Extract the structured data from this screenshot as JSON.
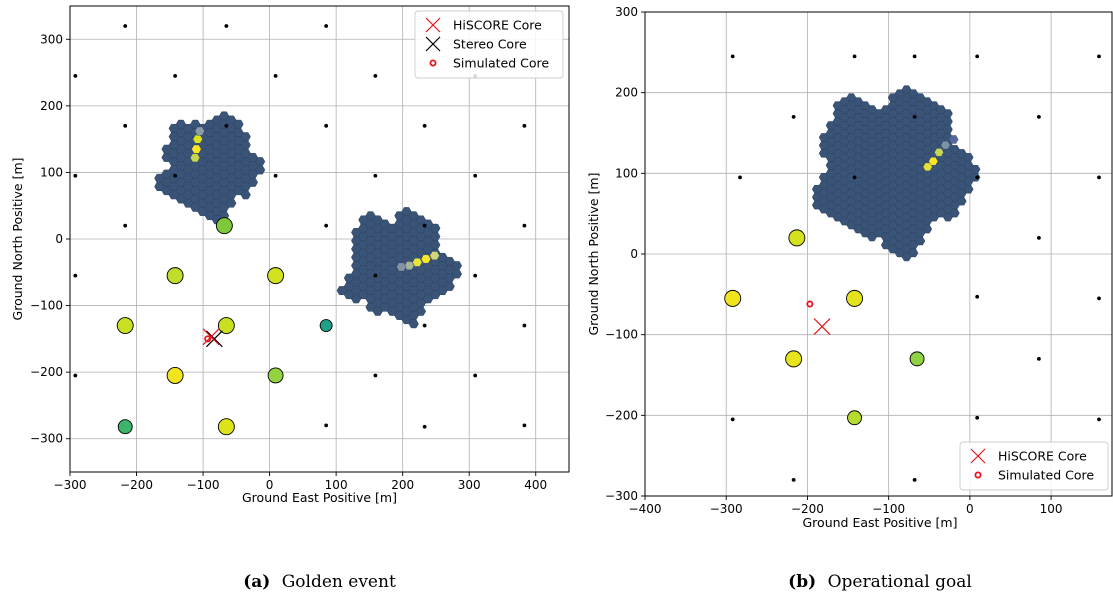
{
  "chart_data": [
    {
      "type": "scatter",
      "caption_label": "(a)",
      "caption_text": "Golden event",
      "xlabel": "Ground East Positive [m]",
      "ylabel": "Ground North Positive [m]",
      "xlim": [
        -300,
        450
      ],
      "ylim": [
        -350,
        350
      ],
      "xticks": [
        -300,
        -200,
        -100,
        0,
        100,
        200,
        300,
        400
      ],
      "yticks": [
        -300,
        -200,
        -100,
        0,
        100,
        200,
        300
      ],
      "grid": true,
      "legend_position": "top-right",
      "legend": [
        {
          "label": "HiSCORE Core",
          "marker": "x",
          "color": "#e8141c"
        },
        {
          "label": "Stereo Core",
          "marker": "x",
          "color": "#000000"
        },
        {
          "label": "Simulated Core",
          "marker": "o-open",
          "color": "#e8141c"
        }
      ],
      "stations": [
        [
          -217,
          320
        ],
        [
          -65,
          320
        ],
        [
          85,
          320
        ],
        [
          -292,
          245
        ],
        [
          -142,
          245
        ],
        [
          9,
          245
        ],
        [
          159,
          245
        ],
        [
          309,
          245
        ],
        [
          -217,
          170
        ],
        [
          -65,
          170
        ],
        [
          85,
          170
        ],
        [
          233,
          170
        ],
        [
          383,
          170
        ],
        [
          -292,
          95
        ],
        [
          -142,
          95
        ],
        [
          9,
          95
        ],
        [
          159,
          95
        ],
        [
          309,
          95
        ],
        [
          -217,
          20
        ],
        [
          85,
          20
        ],
        [
          233,
          20
        ],
        [
          383,
          20
        ],
        [
          -292,
          -55
        ],
        [
          159,
          -55
        ],
        [
          309,
          -55
        ],
        [
          233,
          -130
        ],
        [
          383,
          -130
        ],
        [
          -292,
          -205
        ],
        [
          159,
          -205
        ],
        [
          309,
          -205
        ],
        [
          85,
          -280
        ],
        [
          233,
          -282
        ],
        [
          383,
          -280
        ]
      ],
      "triggered_stations": [
        {
          "x": -68,
          "y": 20,
          "color": "#7ec83a",
          "size": 8
        },
        {
          "x": -142,
          "y": -55,
          "color": "#bfdd2a",
          "size": 8
        },
        {
          "x": 9,
          "y": -55,
          "color": "#d2e21f",
          "size": 8
        },
        {
          "x": -217,
          "y": -130,
          "color": "#c8df22",
          "size": 8
        },
        {
          "x": -65,
          "y": -130,
          "color": "#c8df22",
          "size": 8
        },
        {
          "x": 85,
          "y": -130,
          "color": "#1fa189",
          "size": 6
        },
        {
          "x": -142,
          "y": -205,
          "color": "#f2e51d",
          "size": 8
        },
        {
          "x": 9,
          "y": -205,
          "color": "#93d340",
          "size": 7.5
        },
        {
          "x": -217,
          "y": -282,
          "color": "#3cb46c",
          "size": 7
        },
        {
          "x": -65,
          "y": -282,
          "color": "#dde31a",
          "size": 8
        }
      ],
      "cameras": [
        {
          "cx": -90,
          "cy": 110,
          "r": 85,
          "base": "#3a5478",
          "hot": [
            {
              "x": -110,
              "y": 135,
              "color": "#fde725"
            },
            {
              "x": -108,
              "y": 150,
              "color": "#dde318"
            },
            {
              "x": -112,
              "y": 122,
              "color": "#c7d650"
            },
            {
              "x": -105,
              "y": 162,
              "color": "#8a9ea9"
            }
          ]
        },
        {
          "cx": 195,
          "cy": -40,
          "r": 95,
          "base": "#3a5478",
          "hot": [
            {
              "x": 235,
              "y": -30,
              "color": "#fde725"
            },
            {
              "x": 222,
              "y": -35,
              "color": "#e8e43a"
            },
            {
              "x": 248,
              "y": -25,
              "color": "#d2d87a"
            },
            {
              "x": 210,
              "y": -40,
              "color": "#a8b49a"
            },
            {
              "x": 198,
              "y": -42,
              "color": "#8393a4"
            }
          ]
        }
      ],
      "hiscore_core": {
        "x": -88,
        "y": -147
      },
      "stereo_core": {
        "x": -83,
        "y": -150
      },
      "simulated_core": {
        "x": -93,
        "y": -150
      }
    },
    {
      "type": "scatter",
      "caption_label": "(b)",
      "caption_text": "Operational goal",
      "xlabel": "Ground East Positive [m]",
      "ylabel": "Ground North Positive [m]",
      "xlim": [
        -400,
        175
      ],
      "ylim": [
        -300,
        300
      ],
      "xticks": [
        -400,
        -300,
        -200,
        -100,
        0,
        100
      ],
      "yticks": [
        -300,
        -200,
        -100,
        0,
        100,
        200,
        300
      ],
      "grid": true,
      "legend_position": "bottom-right",
      "legend": [
        {
          "label": "HiSCORE Core",
          "marker": "x",
          "color": "#e8141c"
        },
        {
          "label": "Simulated Core",
          "marker": "o-open",
          "color": "#e8141c"
        }
      ],
      "stations": [
        [
          -292,
          245
        ],
        [
          -142,
          245
        ],
        [
          -68,
          245
        ],
        [
          9,
          245
        ],
        [
          159,
          245
        ],
        [
          -217,
          170
        ],
        [
          -68,
          170
        ],
        [
          85,
          170
        ],
        [
          -283,
          95
        ],
        [
          -142,
          95
        ],
        [
          9,
          95
        ],
        [
          159,
          95
        ],
        [
          85,
          20
        ],
        [
          9,
          -53
        ],
        [
          159,
          -55
        ],
        [
          85,
          -130
        ],
        [
          -292,
          -205
        ],
        [
          9,
          -203
        ],
        [
          159,
          -205
        ],
        [
          -217,
          -280
        ],
        [
          -68,
          -280
        ]
      ],
      "triggered_stations": [
        {
          "x": -213,
          "y": 20,
          "color": "#d4e11d",
          "size": 8
        },
        {
          "x": -292,
          "y": -55,
          "color": "#f0e41c",
          "size": 8
        },
        {
          "x": -142,
          "y": -55,
          "color": "#e2e31c",
          "size": 8
        },
        {
          "x": -217,
          "y": -130,
          "color": "#e8e41b",
          "size": 8
        },
        {
          "x": -65,
          "y": -130,
          "color": "#8fd244",
          "size": 7
        },
        {
          "x": -142,
          "y": -203,
          "color": "#b6db2f",
          "size": 7
        }
      ],
      "cameras": [
        {
          "cx": -95,
          "cy": 105,
          "r": 110,
          "base": "#3a5478",
          "hot": [
            {
              "x": -45,
              "y": 115,
              "color": "#fde725"
            },
            {
              "x": -52,
              "y": 108,
              "color": "#e5e22f"
            },
            {
              "x": -38,
              "y": 126,
              "color": "#c8d65a"
            },
            {
              "x": -30,
              "y": 135,
              "color": "#7f93a8"
            },
            {
              "x": -20,
              "y": 142,
              "color": "#5566a0"
            }
          ]
        }
      ],
      "hiscore_core": {
        "x": -182,
        "y": -90
      },
      "simulated_core": {
        "x": -197,
        "y": -62
      }
    }
  ]
}
